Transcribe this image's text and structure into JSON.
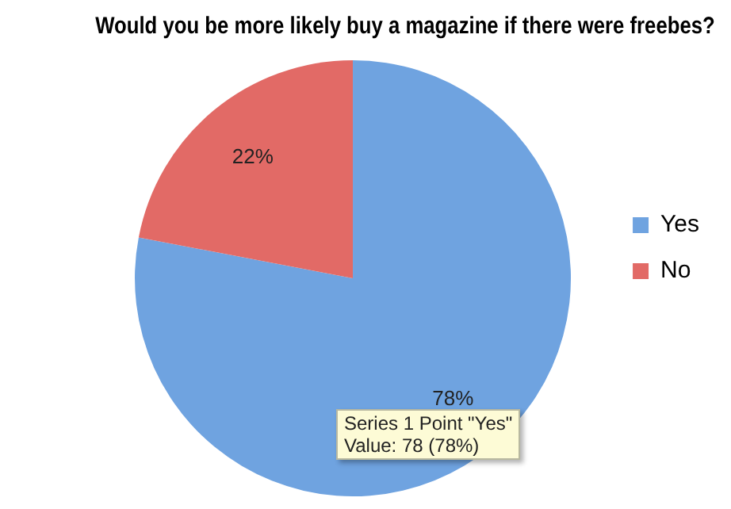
{
  "chart_data": {
    "type": "pie",
    "title": "Would you be more likely buy a magazine if there were freebes?",
    "categories": [
      "Yes",
      "No"
    ],
    "values": [
      78,
      22
    ],
    "colors": [
      "#6fa3e0",
      "#e26a66"
    ],
    "value_labels": [
      "78%",
      "22%"
    ],
    "legend": "right",
    "annotations": [
      "Series 1 Point \"Yes\"",
      "Value: 78 (78%)"
    ]
  }
}
